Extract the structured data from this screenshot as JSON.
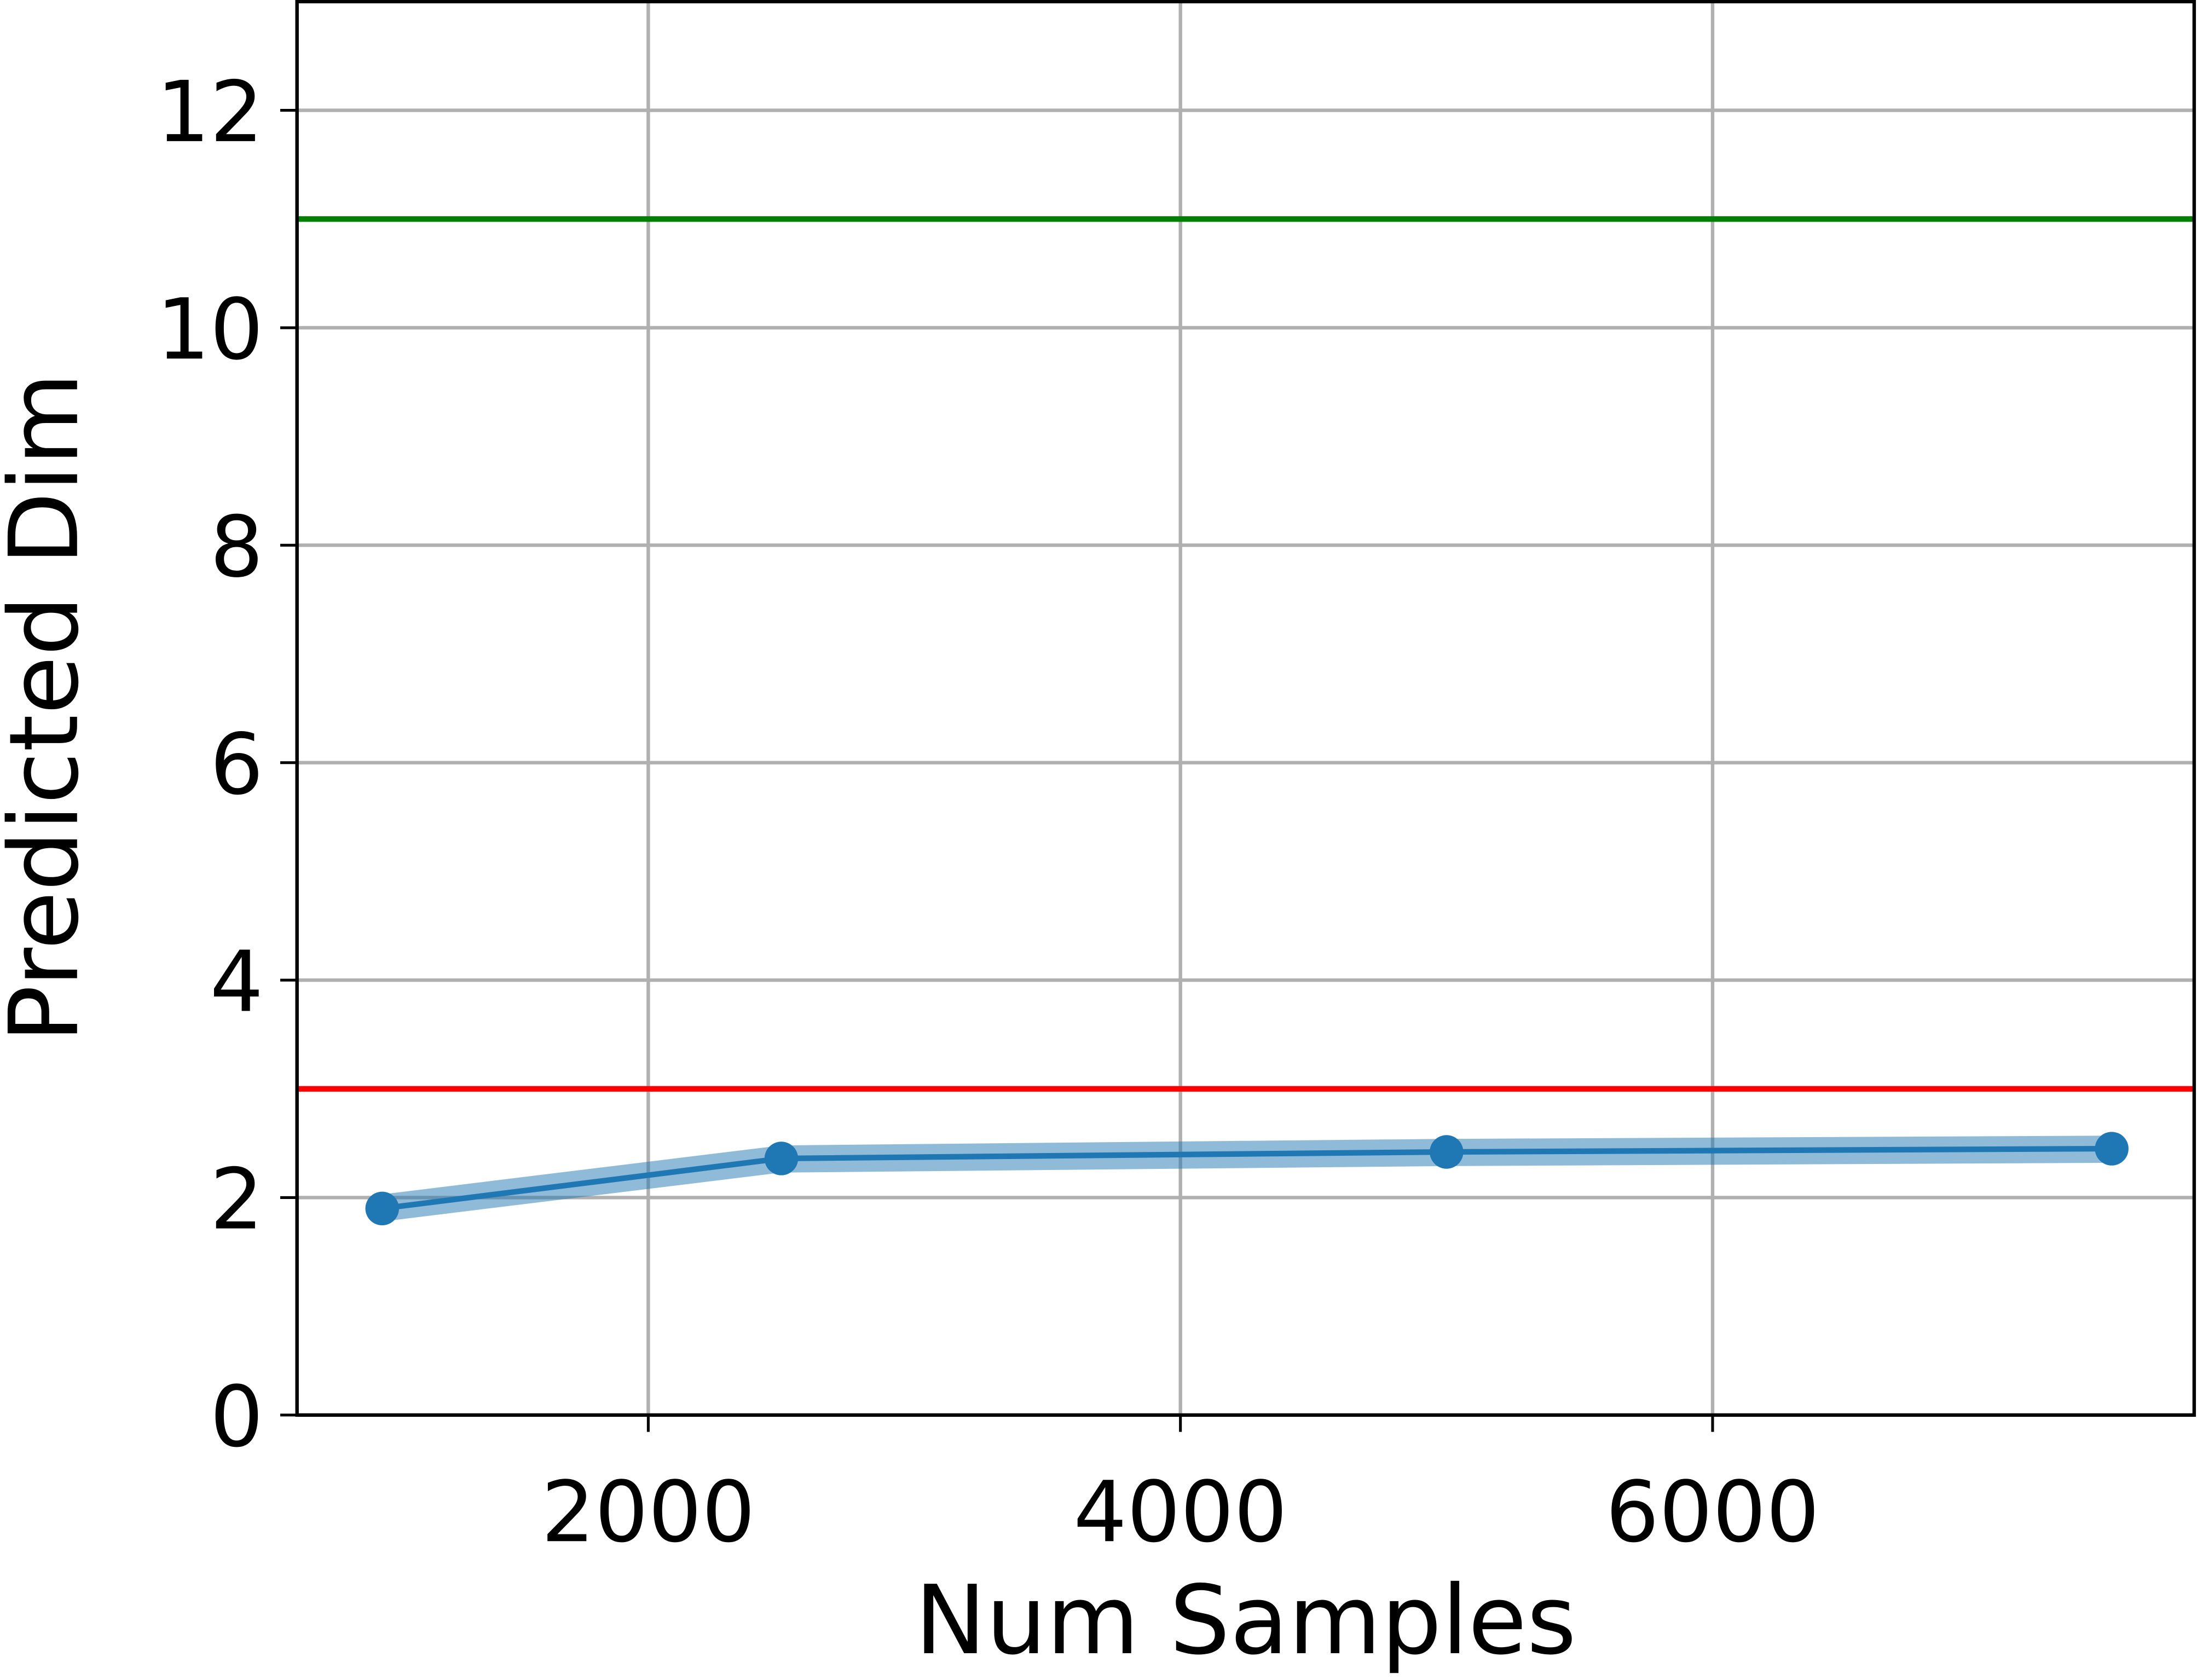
{
  "chart_data": {
    "type": "line",
    "xlabel": "Num Samples",
    "ylabel": "Predicted Dim",
    "x": [
      1000,
      2500,
      5000,
      7500
    ],
    "series": [
      {
        "color": "#1f77b4",
        "values": [
          1.9,
          2.36,
          2.42,
          2.45
        ],
        "lower": [
          1.78,
          2.23,
          2.29,
          2.32
        ],
        "upper": [
          2.03,
          2.48,
          2.54,
          2.57
        ]
      }
    ],
    "hlines": [
      {
        "value": 11,
        "color": "#008000"
      },
      {
        "value": 3,
        "color": "#ff0000"
      }
    ],
    "xlim": [
      680,
      7810
    ],
    "xticks": [
      2000,
      4000,
      6000
    ],
    "ylim": [
      0,
      13
    ],
    "yticks": [
      0,
      2,
      4,
      6,
      8,
      10,
      12
    ],
    "grid": true
  }
}
